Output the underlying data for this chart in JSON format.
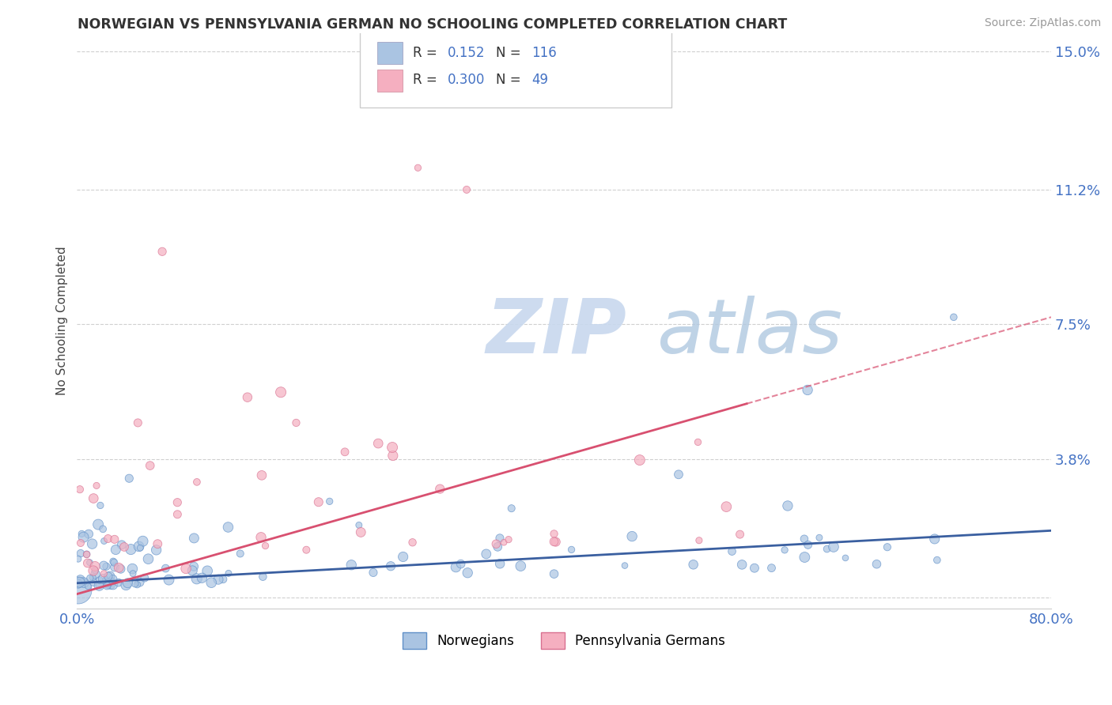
{
  "title": "NORWEGIAN VS PENNSYLVANIA GERMAN NO SCHOOLING COMPLETED CORRELATION CHART",
  "source": "Source: ZipAtlas.com",
  "ylabel": "No Schooling Completed",
  "xlim": [
    0.0,
    0.8
  ],
  "ylim": [
    -0.003,
    0.155
  ],
  "ytick_vals": [
    0.0,
    0.038,
    0.075,
    0.112,
    0.15
  ],
  "ytick_labels": [
    "",
    "3.8%",
    "7.5%",
    "11.2%",
    "15.0%"
  ],
  "xtick_vals": [
    0.0,
    0.1,
    0.2,
    0.3,
    0.4,
    0.5,
    0.6,
    0.7,
    0.8
  ],
  "xtick_labels": [
    "0.0%",
    "",
    "",
    "",
    "",
    "",
    "",
    "",
    "80.0%"
  ],
  "legend_R1": "0.152",
  "legend_N1": "116",
  "legend_R2": "0.300",
  "legend_N2": "49",
  "label1": "Norwegians",
  "label2": "Pennsylvania Germans",
  "color1": "#aac4e2",
  "color2": "#f5afc0",
  "edge_color1": "#6090c8",
  "edge_color2": "#d87090",
  "line_color1": "#3a5fa0",
  "line_color2": "#d85070",
  "background_color": "#ffffff",
  "grid_color": "#d0d0d0",
  "title_color": "#333333",
  "tick_color": "#4472c4",
  "watermark_color1": "#c8d8ee",
  "watermark_color2": "#b0c8e0"
}
